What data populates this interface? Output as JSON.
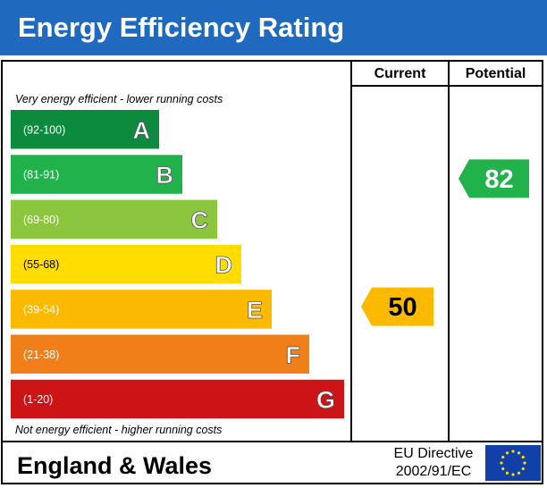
{
  "title": "Energy Efficiency Rating",
  "columns": {
    "current": "Current",
    "potential": "Potential"
  },
  "notes": {
    "top": "Very energy efficient - lower running costs",
    "bottom": "Not energy efficient - higher running costs"
  },
  "footer": {
    "region": "England & Wales",
    "directive_line1": "EU Directive",
    "directive_line2": "2002/91/EC"
  },
  "chart_data": {
    "type": "bar",
    "categories": [
      "A",
      "B",
      "C",
      "D",
      "E",
      "F",
      "G"
    ],
    "ranges": [
      "(92-100)",
      "(81-91)",
      "(69-80)",
      "(55-68)",
      "(39-54)",
      "(21-38)",
      "(1-20)"
    ],
    "band_min": [
      92,
      81,
      69,
      55,
      39,
      21,
      1
    ],
    "band_max": [
      100,
      91,
      80,
      68,
      54,
      38,
      20
    ],
    "colors": [
      "#0c8b3e",
      "#22b24c",
      "#8cc63f",
      "#ffdd00",
      "#fbb900",
      "#f07f1a",
      "#cc1417"
    ],
    "current": {
      "value": 50,
      "color": "#fbb900"
    },
    "potential": {
      "value": 82,
      "color": "#22b24c"
    }
  }
}
